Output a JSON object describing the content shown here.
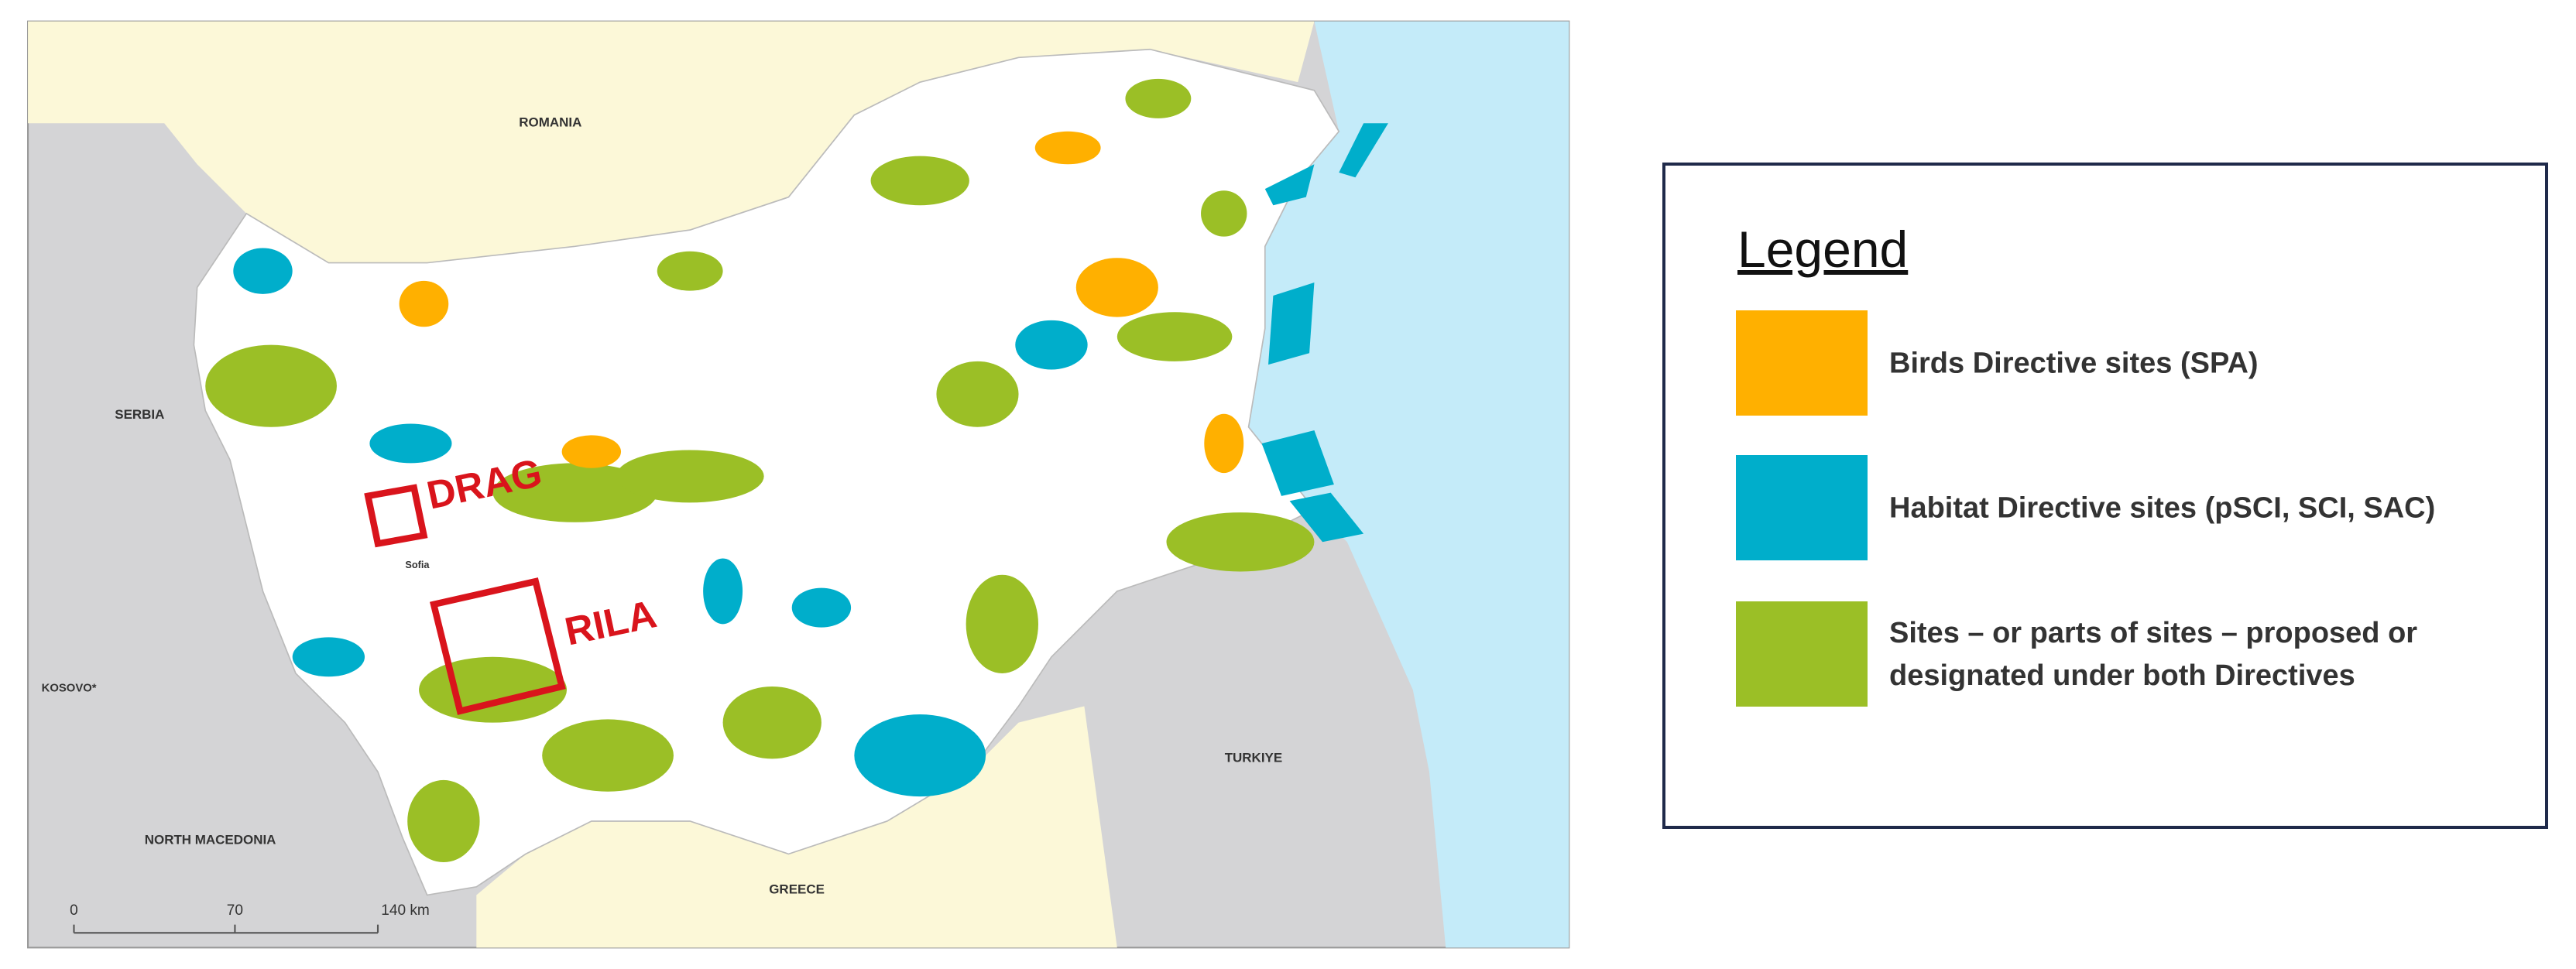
{
  "map": {
    "labels": {
      "romania": "ROMANIA",
      "serbia": "SERBIA",
      "kosovo": "KOSOVO*",
      "north_macedonia": "NORTH MACEDONIA",
      "greece": "GREECE",
      "turkiye": "TURKIYE",
      "sofia": "Sofia"
    },
    "markers": [
      {
        "label": "DRAG"
      },
      {
        "label": "RILA"
      }
    ],
    "scale_bar": [
      "0",
      "70",
      "140 km"
    ]
  },
  "legend": {
    "title": "Legend",
    "items": [
      {
        "label": "Birds Directive sites (SPA)",
        "color": "#ffb000"
      },
      {
        "label": "Habitat Directive sites (pSCI, SCI, SAC)",
        "color": "#00aecb"
      },
      {
        "label": "Sites – or parts of sites – proposed or designated under both Directives",
        "color": "#9bbf26"
      }
    ]
  }
}
